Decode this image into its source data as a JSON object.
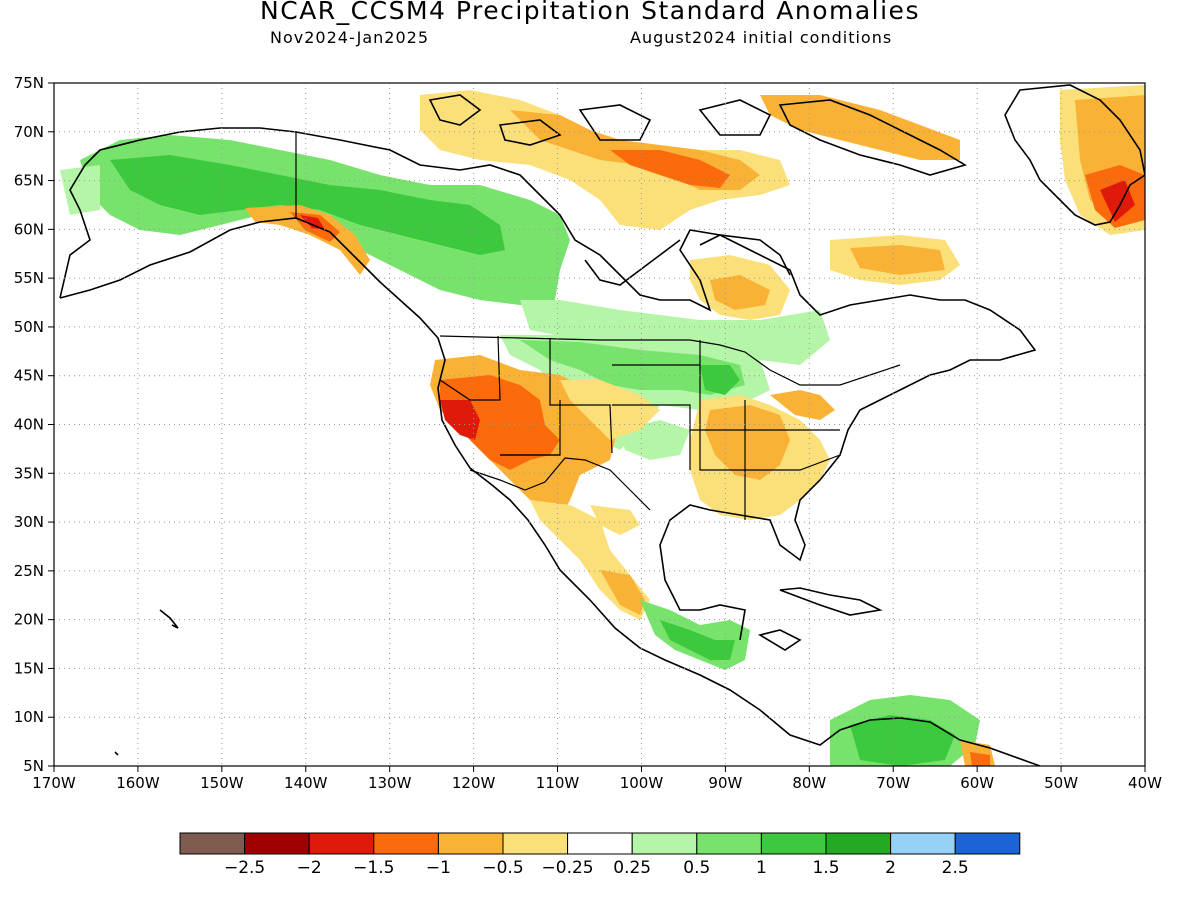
{
  "header": {
    "title": "NCAR_CCSM4 Precipitation Standard Anomalies",
    "subtitle_left": "Nov2024-Jan2025",
    "subtitle_right": "August2024 initial conditions"
  },
  "map": {
    "lon_range": [
      -170,
      -40
    ],
    "lat_range": [
      5,
      75
    ],
    "x_tick_labels": [
      "170W",
      "160W",
      "150W",
      "140W",
      "130W",
      "120W",
      "110W",
      "100W",
      "90W",
      "80W",
      "70W",
      "60W",
      "50W",
      "40W"
    ],
    "y_tick_labels": [
      "5N",
      "10N",
      "15N",
      "20N",
      "25N",
      "30N",
      "35N",
      "40N",
      "45N",
      "50N",
      "55N",
      "60N",
      "65N",
      "70N",
      "75N"
    ],
    "grid": "dotted"
  },
  "colorbar": {
    "colors": [
      "#7f5a4e",
      "#a10000",
      "#e01a0a",
      "#fb6a0b",
      "#f9b236",
      "#fbe07a",
      "#ffffff",
      "#b4f5a8",
      "#78e36c",
      "#3dc93d",
      "#23aa23",
      "#96d2f5",
      "#1b63d7"
    ],
    "labels": [
      "-2.5",
      "-2",
      "-1.5",
      "-1",
      "-0.5",
      "-0.25",
      "0.25",
      "0.5",
      "1",
      "1.5",
      "2",
      "2.5"
    ]
  }
}
